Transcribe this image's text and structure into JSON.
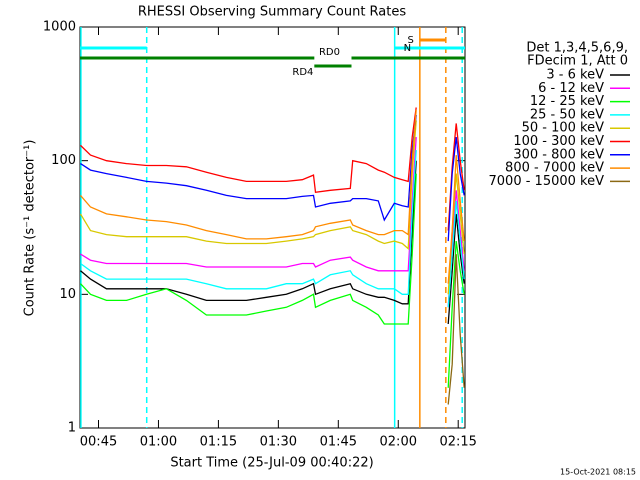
{
  "chart_data": {
    "type": "line",
    "title": "RHESSI Observing Summary Count Rates",
    "x_label": "Start Time (25-Jul-09 00:40:22)",
    "y_label": "Count Rate (s⁻¹ detector⁻¹)",
    "legend_header": [
      "Det 1,3,4,5,6,9,",
      "FDecim 1, Att 0"
    ],
    "footer": "15-Oct-2021 08:15",
    "log_y": true,
    "legend_position": "right",
    "xlim": [
      40.37,
      136.7
    ],
    "ylim": [
      1,
      1000
    ],
    "yticks": [
      1,
      10,
      100,
      1000
    ],
    "xticks": [
      {
        "value": 45,
        "label": "00:45"
      },
      {
        "value": 60,
        "label": "01:00"
      },
      {
        "value": 75,
        "label": "01:15"
      },
      {
        "value": 90,
        "label": "01:30"
      },
      {
        "value": 105,
        "label": "01:45"
      },
      {
        "value": 120,
        "label": "02:00"
      },
      {
        "value": 135,
        "label": "02:15"
      }
    ],
    "x": [
      40.5,
      43,
      47,
      52,
      57,
      62,
      67,
      72,
      77,
      82,
      87,
      92,
      96,
      98.8,
      99.3,
      103,
      108,
      108.6,
      112,
      115,
      116.5,
      119,
      121,
      122.5,
      123.5,
      124.5,
      128,
      132.5,
      133.5,
      134.5,
      135.5,
      136.5
    ],
    "series": [
      {
        "name": "3 - 6 keV",
        "color": "#000000",
        "values": [
          15,
          13,
          11,
          11,
          11,
          11,
          10,
          9,
          9,
          9,
          9.5,
          10,
          11,
          12,
          10,
          11,
          12,
          11,
          10,
          9.5,
          9.5,
          9,
          8.5,
          8.5,
          30,
          100,
          null,
          6,
          15,
          40,
          20,
          12
        ]
      },
      {
        "name": "6 - 12 keV",
        "color": "#ff00ff",
        "values": [
          20,
          18,
          17,
          17,
          17,
          17,
          17,
          16,
          16,
          16,
          16,
          16,
          17,
          17,
          16,
          18,
          19,
          18,
          16,
          15,
          15,
          15,
          15,
          15,
          50,
          150,
          null,
          8,
          25,
          60,
          30,
          15
        ]
      },
      {
        "name": "12 - 25 keV",
        "color": "#00ff00",
        "values": [
          12,
          10,
          9,
          9,
          10,
          11,
          9,
          7,
          7,
          7,
          7.5,
          8,
          9,
          10,
          8,
          9,
          10,
          9,
          8,
          7,
          6,
          6,
          6,
          6,
          20,
          80,
          null,
          2,
          8,
          25,
          15,
          10
        ]
      },
      {
        "name": "25 - 50 keV",
        "color": "#00ffff",
        "values": [
          17,
          15,
          13,
          13,
          13,
          13,
          13,
          12,
          11,
          11,
          11,
          12,
          12,
          13,
          12,
          14,
          15,
          14,
          12,
          11,
          11,
          11,
          10,
          10,
          40,
          120,
          null,
          8,
          20,
          50,
          25,
          13
        ]
      },
      {
        "name": "50 - 100 keV",
        "color": "#d8c800",
        "values": [
          40,
          30,
          28,
          27,
          27,
          27,
          27,
          25,
          24,
          24,
          24,
          25,
          26,
          27,
          28,
          30,
          32,
          30,
          28,
          25,
          24,
          25,
          24,
          22,
          80,
          200,
          null,
          10,
          30,
          80,
          40,
          20
        ]
      },
      {
        "name": "100 - 300 keV",
        "color": "#ff0000",
        "values": [
          130,
          110,
          100,
          95,
          92,
          92,
          90,
          82,
          75,
          70,
          70,
          70,
          72,
          78,
          58,
          60,
          62,
          100,
          95,
          85,
          82,
          75,
          72,
          70,
          150,
          250,
          null,
          30,
          90,
          190,
          100,
          60
        ]
      },
      {
        "name": "300 - 800 keV",
        "color": "#0000ff",
        "values": [
          95,
          85,
          80,
          75,
          70,
          68,
          65,
          60,
          55,
          52,
          52,
          52,
          54,
          55,
          45,
          48,
          50,
          52,
          52,
          50,
          36,
          48,
          46,
          45,
          120,
          220,
          null,
          25,
          80,
          150,
          80,
          55
        ]
      },
      {
        "name": "800 - 7000 keV",
        "color": "#ff8c00",
        "values": [
          55,
          45,
          40,
          38,
          36,
          35,
          33,
          30,
          28,
          26,
          26,
          27,
          28,
          30,
          32,
          34,
          36,
          33,
          30,
          28,
          28,
          30,
          30,
          28,
          100,
          240,
          null,
          12,
          30,
          110,
          50,
          25
        ]
      },
      {
        "name": "7000 - 15000 keV",
        "color": "#8b6914",
        "values": [
          null,
          null,
          null,
          null,
          null,
          null,
          null,
          null,
          null,
          null,
          null,
          null,
          null,
          null,
          null,
          null,
          null,
          null,
          null,
          null,
          null,
          null,
          null,
          null,
          null,
          2,
          null,
          1.5,
          3,
          20,
          5,
          2
        ]
      }
    ],
    "flags": [
      {
        "label": "N",
        "color": "#00ffff",
        "ranges": [
          [
            40.37,
            57.06
          ],
          [
            119.1,
            136.7
          ]
        ]
      },
      {
        "label": "S",
        "color": "#ff8c00",
        "ranges": [
          [
            125.4,
            131.9
          ]
        ]
      },
      {
        "label": "RD0",
        "color": "#008000",
        "ranges": [
          [
            40.37,
            99
          ],
          [
            108.3,
            136.7
          ]
        ]
      },
      {
        "label": "RD4",
        "color": "#008000",
        "ranges": [
          [
            99,
            108.3
          ]
        ]
      }
    ],
    "vlines": [
      {
        "x": 40.6,
        "color": "#00ffff",
        "dashed": false
      },
      {
        "x": 57.06,
        "color": "#00ffff",
        "dashed": true
      },
      {
        "x": 119.1,
        "color": "#00ffff",
        "dashed": false
      },
      {
        "x": 125.4,
        "color": "#ff8c00",
        "dashed": false
      },
      {
        "x": 131.9,
        "color": "#ff8c00",
        "dashed": true
      },
      {
        "x": 136,
        "color": "#00ffff",
        "dashed": true
      }
    ]
  }
}
